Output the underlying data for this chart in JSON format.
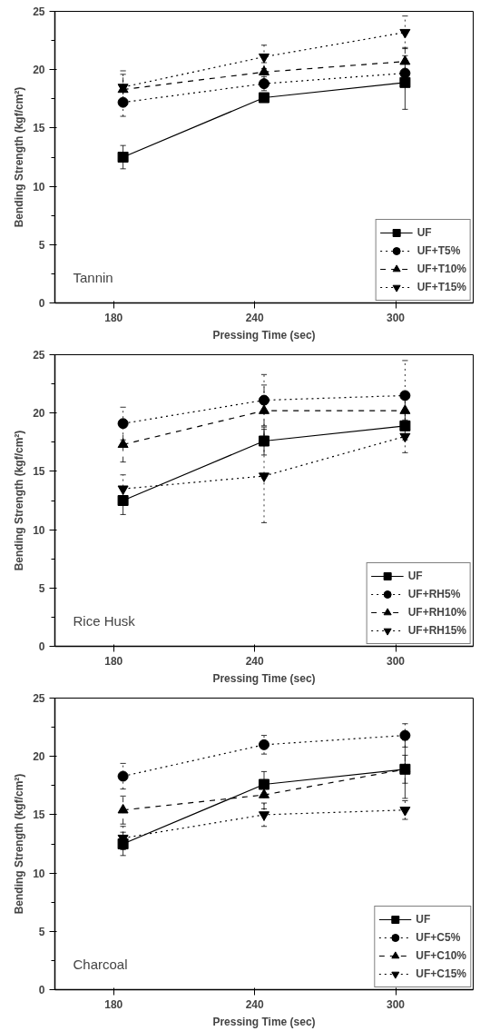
{
  "chart_data": [
    {
      "type": "line",
      "xlabel": "Pressing Time (sec)",
      "ylabel": "Bending Strength (kgf/cm²)",
      "x": [
        184,
        244,
        304
      ],
      "xlim": [
        155,
        333
      ],
      "xticks": [
        {
          "value": 180,
          "label": "180"
        },
        {
          "value": 240,
          "label": "240"
        },
        {
          "value": 300,
          "label": "300"
        }
      ],
      "ylim": [
        0,
        25
      ],
      "yticks": [
        0,
        5,
        10,
        15,
        20,
        25
      ],
      "grid": false,
      "legend": "bottom right",
      "annotations": [
        "Tannin"
      ],
      "series": [
        {
          "name": "UF",
          "color": "#000000",
          "marker": "square",
          "line_style": "solid",
          "values": [
            12.5,
            17.6,
            18.9
          ],
          "errors": [
            1.0,
            0.3,
            2.3
          ]
        },
        {
          "name": "UF+T5%",
          "color": "#000000",
          "marker": "circle",
          "line_style": "dotted",
          "values": [
            17.2,
            18.8,
            19.7
          ],
          "errors": [
            1.2,
            0.6,
            1.0
          ]
        },
        {
          "name": "UF+T10%",
          "color": "#000000",
          "marker": "triangle",
          "line_style": "dashed",
          "values": [
            18.3,
            19.8,
            20.7
          ],
          "errors": [
            1.3,
            0.8,
            1.2
          ]
        },
        {
          "name": "UF+T15%",
          "color": "#000000",
          "marker": "triangle",
          "line_style": "dotted",
          "values": [
            18.5,
            21.1,
            23.2
          ],
          "errors": [
            1.4,
            1.0,
            1.4
          ]
        }
      ]
    },
    {
      "type": "line",
      "xlabel": "Pressing Time (sec)",
      "ylabel": "Bending Strength (kgf/cm²)",
      "x": [
        184,
        244,
        304
      ],
      "xlim": [
        155,
        333
      ],
      "xticks": [
        {
          "value": 180,
          "label": "180"
        },
        {
          "value": 240,
          "label": "240"
        },
        {
          "value": 300,
          "label": "300"
        }
      ],
      "ylim": [
        0,
        25
      ],
      "yticks": [
        0,
        5,
        10,
        15,
        20,
        25
      ],
      "grid": false,
      "legend": "bottom right",
      "annotations": [
        "Rice Husk"
      ],
      "series": [
        {
          "name": "UF",
          "color": "#000000",
          "marker": "square",
          "line_style": "solid",
          "values": [
            12.5,
            17.6,
            18.9
          ],
          "errors": [
            1.2,
            1.2,
            1.2
          ]
        },
        {
          "name": "UF+RH5%",
          "color": "#000000",
          "marker": "circle",
          "line_style": "dotted",
          "values": [
            19.1,
            21.1,
            21.5
          ],
          "errors": [
            1.4,
            2.2,
            3.0
          ]
        },
        {
          "name": "UF+RH10%",
          "color": "#000000",
          "marker": "triangle",
          "line_style": "dashed",
          "values": [
            17.3,
            20.2,
            20.2
          ],
          "errors": [
            1.5,
            2.2,
            1.4
          ]
        },
        {
          "name": "UF+RH15%",
          "color": "#000000",
          "marker": "triangle",
          "line_style": "dotted",
          "values": [
            13.5,
            14.6,
            18.0
          ],
          "errors": [
            1.2,
            4.0,
            1.4
          ]
        }
      ]
    },
    {
      "type": "line",
      "xlabel": "Pressing Time (sec)",
      "ylabel": "Bending Strength (kgf/cm²)",
      "x": [
        184,
        244,
        304
      ],
      "xlim": [
        155,
        333
      ],
      "xticks": [
        {
          "value": 180,
          "label": "180"
        },
        {
          "value": 240,
          "label": "240"
        },
        {
          "value": 300,
          "label": "300"
        }
      ],
      "ylim": [
        0,
        25
      ],
      "yticks": [
        0,
        5,
        10,
        15,
        20,
        25
      ],
      "grid": false,
      "legend": "bottom right",
      "annotations": [
        "Charcoal"
      ],
      "series": [
        {
          "name": "UF",
          "color": "#000000",
          "marker": "square",
          "line_style": "solid",
          "values": [
            12.5,
            17.6,
            18.9
          ],
          "errors": [
            1.0,
            1.1,
            2.5
          ]
        },
        {
          "name": "UF+C5%",
          "color": "#000000",
          "marker": "circle",
          "line_style": "dotted",
          "values": [
            18.3,
            21.0,
            21.8
          ],
          "errors": [
            1.1,
            0.8,
            1.0
          ]
        },
        {
          "name": "UF+C10%",
          "color": "#000000",
          "marker": "triangle",
          "line_style": "dashed",
          "values": [
            15.4,
            16.7,
            18.9
          ],
          "errors": [
            1.2,
            1.2,
            1.2
          ]
        },
        {
          "name": "UF+C15%",
          "color": "#000000",
          "marker": "triangle",
          "line_style": "dotted",
          "values": [
            13.0,
            15.0,
            15.4
          ],
          "errors": [
            1.0,
            1.0,
            0.8
          ]
        }
      ]
    }
  ]
}
